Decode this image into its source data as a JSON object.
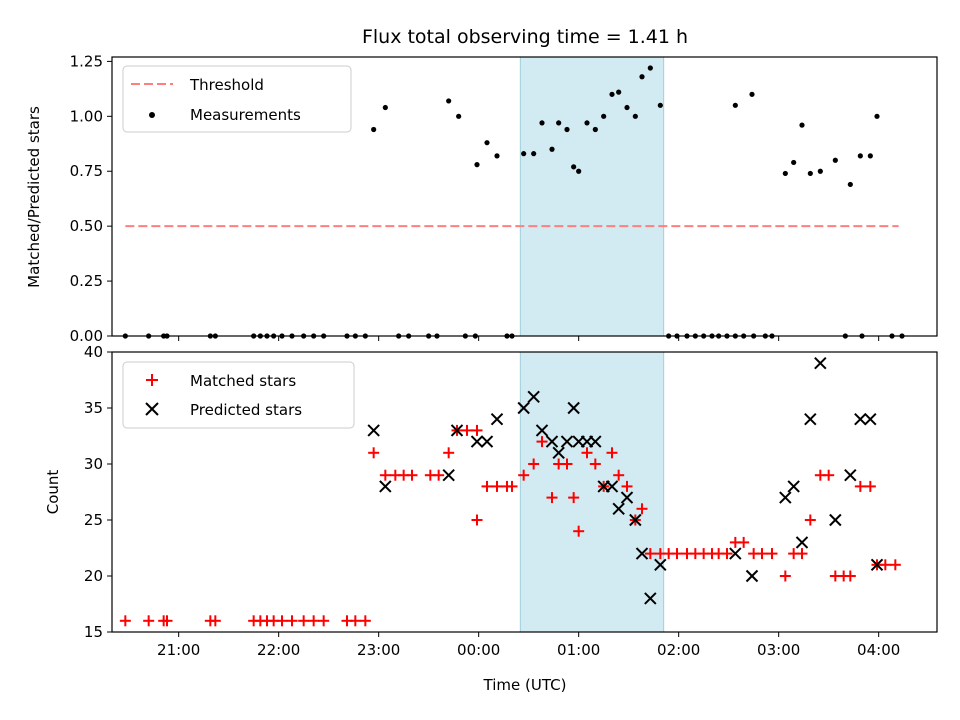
{
  "chart_data": [
    {
      "type": "scatter",
      "title": "Flux total observing time = 1.41 h",
      "ylabel": "Matched/Predicted stars",
      "ylim": [
        0,
        1.27
      ],
      "yticks": [
        0.0,
        0.25,
        0.5,
        0.75,
        1.0,
        1.25
      ],
      "ytick_labels": [
        "0.00",
        "0.25",
        "0.50",
        "0.75",
        "1.00",
        "1.25"
      ],
      "highlight_span": {
        "x": [
          "00:25",
          "01:51"
        ],
        "color": "#add8e6"
      },
      "legend": {
        "position": "upper left",
        "entries": [
          "Threshold",
          "Measurements"
        ]
      },
      "series": [
        {
          "name": "Threshold",
          "style": "dashed-line",
          "color": "#ff7f7f",
          "points": [
            [
              "20:28",
              0.5
            ],
            [
              "04:12",
              0.5
            ]
          ]
        },
        {
          "name": "Measurements",
          "style": "dot",
          "color": "#000000",
          "points": [
            [
              "20:28",
              0
            ],
            [
              "20:42",
              0
            ],
            [
              "20:51",
              0
            ],
            [
              "20:53",
              0
            ],
            [
              "21:19",
              0
            ],
            [
              "21:22",
              0
            ],
            [
              "21:45",
              0
            ],
            [
              "21:49",
              0
            ],
            [
              "21:53",
              0
            ],
            [
              "21:57",
              0
            ],
            [
              "22:02",
              0
            ],
            [
              "22:08",
              0
            ],
            [
              "22:15",
              0
            ],
            [
              "22:21",
              0
            ],
            [
              "22:27",
              0
            ],
            [
              "22:41",
              0
            ],
            [
              "22:46",
              0
            ],
            [
              "22:52",
              0
            ],
            [
              "22:57",
              0.94
            ],
            [
              "23:04",
              1.04
            ],
            [
              "23:12",
              0
            ],
            [
              "23:18",
              0
            ],
            [
              "23:30",
              0
            ],
            [
              "23:35",
              0
            ],
            [
              "23:42",
              1.07
            ],
            [
              "23:48",
              1.0
            ],
            [
              "23:52",
              0
            ],
            [
              "23:58",
              0
            ],
            [
              "23:59",
              0.78
            ],
            [
              "00:05",
              0.88
            ],
            [
              "00:11",
              0.82
            ],
            [
              "00:17",
              0
            ],
            [
              "00:20",
              0
            ],
            [
              "00:27",
              0.83
            ],
            [
              "00:33",
              0.83
            ],
            [
              "00:38",
              0.97
            ],
            [
              "00:44",
              0.85
            ],
            [
              "00:48",
              0.97
            ],
            [
              "00:53",
              0.94
            ],
            [
              "00:57",
              0.77
            ],
            [
              "01:00",
              0.75
            ],
            [
              "01:05",
              0.97
            ],
            [
              "01:10",
              0.94
            ],
            [
              "01:15",
              1.0
            ],
            [
              "01:20",
              1.1
            ],
            [
              "01:24",
              1.11
            ],
            [
              "01:29",
              1.04
            ],
            [
              "01:34",
              1.0
            ],
            [
              "01:38",
              1.18
            ],
            [
              "01:43",
              1.22
            ],
            [
              "01:49",
              1.05
            ],
            [
              "01:54",
              0
            ],
            [
              "01:59",
              0
            ],
            [
              "02:05",
              0
            ],
            [
              "02:10",
              0
            ],
            [
              "02:15",
              0
            ],
            [
              "02:20",
              0
            ],
            [
              "02:24",
              0
            ],
            [
              "02:29",
              0
            ],
            [
              "02:34",
              0
            ],
            [
              "02:39",
              0
            ],
            [
              "02:45",
              0
            ],
            [
              "02:52",
              0
            ],
            [
              "02:56",
              0
            ],
            [
              "02:34",
              1.05
            ],
            [
              "02:44",
              1.1
            ],
            [
              "03:04",
              0.74
            ],
            [
              "03:09",
              0.79
            ],
            [
              "03:14",
              0.96
            ],
            [
              "03:19",
              0.74
            ],
            [
              "03:25",
              0.75
            ],
            [
              "03:34",
              0.8
            ],
            [
              "03:43",
              0.69
            ],
            [
              "03:49",
              0.82
            ],
            [
              "03:55",
              0.82
            ],
            [
              "03:59",
              1.0
            ],
            [
              "03:40",
              0
            ],
            [
              "03:50",
              0
            ],
            [
              "04:08",
              0
            ],
            [
              "04:14",
              0
            ]
          ]
        }
      ]
    },
    {
      "type": "scatter",
      "xlabel": "Time (UTC)",
      "ylabel": "Count",
      "ylim": [
        15,
        40
      ],
      "yticks": [
        15,
        20,
        25,
        30,
        35,
        40
      ],
      "ytick_labels": [
        "15",
        "20",
        "25",
        "30",
        "35",
        "40"
      ],
      "xticks": [
        "21:00",
        "22:00",
        "23:00",
        "00:00",
        "01:00",
        "02:00",
        "03:00",
        "04:00"
      ],
      "highlight_span": {
        "x": [
          "00:25",
          "01:51"
        ],
        "color": "#add8e6"
      },
      "legend": {
        "position": "upper left",
        "entries": [
          "Matched stars",
          "Predicted stars"
        ]
      },
      "series": [
        {
          "name": "Matched stars",
          "marker": "plus",
          "color": "#ff0000",
          "points": [
            [
              "20:28",
              16
            ],
            [
              "20:42",
              16
            ],
            [
              "20:51",
              16
            ],
            [
              "20:53",
              16
            ],
            [
              "21:19",
              16
            ],
            [
              "21:22",
              16
            ],
            [
              "21:45",
              16
            ],
            [
              "21:49",
              16
            ],
            [
              "21:53",
              16
            ],
            [
              "21:57",
              16
            ],
            [
              "22:02",
              16
            ],
            [
              "22:08",
              16
            ],
            [
              "22:15",
              16
            ],
            [
              "22:21",
              16
            ],
            [
              "22:27",
              16
            ],
            [
              "22:41",
              16
            ],
            [
              "22:46",
              16
            ],
            [
              "22:52",
              16
            ],
            [
              "22:57",
              31
            ],
            [
              "23:04",
              29
            ],
            [
              "23:10",
              29
            ],
            [
              "23:15",
              29
            ],
            [
              "23:20",
              29
            ],
            [
              "23:31",
              29
            ],
            [
              "23:36",
              29
            ],
            [
              "23:42",
              31
            ],
            [
              "23:47",
              33
            ],
            [
              "23:53",
              33
            ],
            [
              "23:59",
              33
            ],
            [
              "23:59",
              25
            ],
            [
              "00:05",
              28
            ],
            [
              "00:11",
              28
            ],
            [
              "00:17",
              28
            ],
            [
              "00:20",
              28
            ],
            [
              "00:27",
              29
            ],
            [
              "00:33",
              30
            ],
            [
              "00:38",
              32
            ],
            [
              "00:44",
              27
            ],
            [
              "00:48",
              30
            ],
            [
              "00:53",
              30
            ],
            [
              "00:57",
              27
            ],
            [
              "01:00",
              24
            ],
            [
              "01:05",
              31
            ],
            [
              "01:10",
              30
            ],
            [
              "01:15",
              28
            ],
            [
              "01:20",
              31
            ],
            [
              "01:24",
              29
            ],
            [
              "01:29",
              28
            ],
            [
              "01:34",
              25
            ],
            [
              "01:38",
              26
            ],
            [
              "01:43",
              22
            ],
            [
              "01:49",
              22
            ],
            [
              "01:54",
              22
            ],
            [
              "01:59",
              22
            ],
            [
              "02:05",
              22
            ],
            [
              "02:10",
              22
            ],
            [
              "02:15",
              22
            ],
            [
              "02:20",
              22
            ],
            [
              "02:24",
              22
            ],
            [
              "02:29",
              22
            ],
            [
              "02:34",
              23
            ],
            [
              "02:39",
              23
            ],
            [
              "02:45",
              22
            ],
            [
              "02:50",
              22
            ],
            [
              "02:56",
              22
            ],
            [
              "03:04",
              20
            ],
            [
              "03:09",
              22
            ],
            [
              "03:14",
              22
            ],
            [
              "03:19",
              25
            ],
            [
              "03:25",
              29
            ],
            [
              "03:30",
              29
            ],
            [
              "03:34",
              20
            ],
            [
              "03:39",
              20
            ],
            [
              "03:43",
              20
            ],
            [
              "03:49",
              28
            ],
            [
              "03:55",
              28
            ],
            [
              "03:59",
              21
            ],
            [
              "04:04",
              21
            ],
            [
              "04:10",
              21
            ]
          ]
        },
        {
          "name": "Predicted stars",
          "marker": "x",
          "color": "#000000",
          "points": [
            [
              "22:57",
              33
            ],
            [
              "23:04",
              28
            ],
            [
              "23:42",
              29
            ],
            [
              "23:47",
              33
            ],
            [
              "23:59",
              32
            ],
            [
              "00:05",
              32
            ],
            [
              "00:11",
              34
            ],
            [
              "00:27",
              35
            ],
            [
              "00:33",
              36
            ],
            [
              "00:38",
              33
            ],
            [
              "00:44",
              32
            ],
            [
              "00:48",
              31
            ],
            [
              "00:53",
              32
            ],
            [
              "00:57",
              35
            ],
            [
              "01:00",
              32
            ],
            [
              "01:05",
              32
            ],
            [
              "01:10",
              32
            ],
            [
              "01:15",
              28
            ],
            [
              "01:20",
              28
            ],
            [
              "01:24",
              26
            ],
            [
              "01:29",
              27
            ],
            [
              "01:34",
              25
            ],
            [
              "01:38",
              22
            ],
            [
              "01:43",
              18
            ],
            [
              "01:49",
              21
            ],
            [
              "02:34",
              22
            ],
            [
              "02:44",
              20
            ],
            [
              "03:04",
              27
            ],
            [
              "03:09",
              28
            ],
            [
              "03:14",
              23
            ],
            [
              "03:19",
              34
            ],
            [
              "03:25",
              39
            ],
            [
              "03:34",
              25
            ],
            [
              "03:43",
              29
            ],
            [
              "03:49",
              34
            ],
            [
              "03:55",
              34
            ],
            [
              "03:59",
              21
            ]
          ]
        }
      ]
    }
  ]
}
